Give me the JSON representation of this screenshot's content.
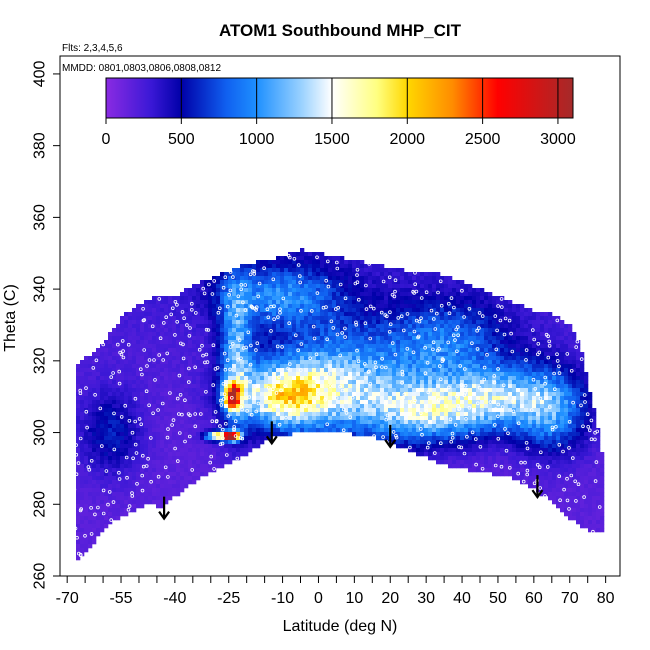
{
  "chart_data": {
    "type": "heatmap",
    "title": "ATOM1 Southbound MHP_CIT",
    "subtitle_lines": [
      "Flts: 2,3,4,5,6",
      "MMDD: 0801,0803,0806,0808,0812"
    ],
    "xlabel": "Latitude (deg N)",
    "ylabel": "Theta (C)",
    "xlim": [
      -72,
      84
    ],
    "ylim": [
      260,
      405
    ],
    "x_ticks": [
      -70,
      -55,
      -40,
      -25,
      -10,
      0,
      10,
      20,
      30,
      40,
      50,
      60,
      70,
      80
    ],
    "x_tick_labels": [
      "-70",
      "-55",
      "-40",
      "-25",
      "-10",
      "0",
      "10",
      "20",
      "30",
      "40",
      "50",
      "60",
      "70",
      "80"
    ],
    "x_minor_step": 5,
    "y_ticks": [
      260,
      280,
      300,
      320,
      340,
      360,
      380,
      400
    ],
    "y_tick_labels": [
      "260",
      "280",
      "300",
      "320",
      "340",
      "360",
      "380",
      "400"
    ],
    "colorbar": {
      "range": [
        0,
        3100
      ],
      "ticks": [
        0,
        500,
        1000,
        1500,
        2000,
        2500,
        3000
      ],
      "tick_labels": [
        "0",
        "500",
        "1000",
        "1500",
        "2000",
        "2500",
        "3000"
      ],
      "stops": [
        {
          "v": 0,
          "c": "#8a2be2"
        },
        {
          "v": 300,
          "c": "#3a18d6"
        },
        {
          "v": 500,
          "c": "#0000a8"
        },
        {
          "v": 800,
          "c": "#1060f0"
        },
        {
          "v": 1000,
          "c": "#1e90ff"
        },
        {
          "v": 1300,
          "c": "#9bd2ff"
        },
        {
          "v": 1500,
          "c": "#ffffff"
        },
        {
          "v": 1800,
          "c": "#ffff80"
        },
        {
          "v": 2000,
          "c": "#ffd700"
        },
        {
          "v": 2300,
          "c": "#ff8c00"
        },
        {
          "v": 2600,
          "c": "#ff0000"
        },
        {
          "v": 3100,
          "c": "#a52a2a"
        }
      ]
    },
    "upper_boundary": [
      {
        "lat": -68,
        "theta": 318
      },
      {
        "lat": -60,
        "theta": 325
      },
      {
        "lat": -55,
        "theta": 332
      },
      {
        "lat": -50,
        "theta": 336
      },
      {
        "lat": -45,
        "theta": 338
      },
      {
        "lat": -40,
        "theta": 338
      },
      {
        "lat": -35,
        "theta": 341
      },
      {
        "lat": -30,
        "theta": 343
      },
      {
        "lat": -25,
        "theta": 345
      },
      {
        "lat": -20,
        "theta": 347
      },
      {
        "lat": -15,
        "theta": 348
      },
      {
        "lat": -10,
        "theta": 349
      },
      {
        "lat": -5,
        "theta": 351
      },
      {
        "lat": 0,
        "theta": 350
      },
      {
        "lat": 5,
        "theta": 349
      },
      {
        "lat": 10,
        "theta": 348
      },
      {
        "lat": 15,
        "theta": 347
      },
      {
        "lat": 20,
        "theta": 346
      },
      {
        "lat": 25,
        "theta": 345
      },
      {
        "lat": 30,
        "theta": 345
      },
      {
        "lat": 35,
        "theta": 344
      },
      {
        "lat": 40,
        "theta": 342
      },
      {
        "lat": 45,
        "theta": 340
      },
      {
        "lat": 50,
        "theta": 338
      },
      {
        "lat": 55,
        "theta": 336
      },
      {
        "lat": 60,
        "theta": 334
      },
      {
        "lat": 65,
        "theta": 333
      },
      {
        "lat": 70,
        "theta": 330
      },
      {
        "lat": 73,
        "theta": 324
      },
      {
        "lat": 76,
        "theta": 310
      },
      {
        "lat": 78,
        "theta": 301
      },
      {
        "lat": 79,
        "theta": 295
      }
    ],
    "lower_boundary": [
      {
        "lat": 79,
        "theta": 272
      },
      {
        "lat": 76,
        "theta": 272
      },
      {
        "lat": 70,
        "theta": 276
      },
      {
        "lat": 62,
        "theta": 283
      },
      {
        "lat": 55,
        "theta": 287
      },
      {
        "lat": 45,
        "theta": 289
      },
      {
        "lat": 35,
        "theta": 291
      },
      {
        "lat": 25,
        "theta": 295
      },
      {
        "lat": 15,
        "theta": 299
      },
      {
        "lat": 5,
        "theta": 300
      },
      {
        "lat": -5,
        "theta": 300
      },
      {
        "lat": -12,
        "theta": 299
      },
      {
        "lat": -20,
        "theta": 294
      },
      {
        "lat": -25,
        "theta": 291
      },
      {
        "lat": -30,
        "theta": 289
      },
      {
        "lat": -35,
        "theta": 286
      },
      {
        "lat": -40,
        "theta": 282
      },
      {
        "lat": -43,
        "theta": 279
      },
      {
        "lat": -47,
        "theta": 280
      },
      {
        "lat": -52,
        "theta": 278
      },
      {
        "lat": -58,
        "theta": 275
      },
      {
        "lat": -62,
        "theta": 270
      },
      {
        "lat": -66,
        "theta": 265
      },
      {
        "lat": -68,
        "theta": 264
      }
    ],
    "field_features": [
      {
        "lat": -10,
        "theta": 310,
        "value": 1250,
        "sigma_lat": 9,
        "sigma_theta": 6
      },
      {
        "lat": 5,
        "theta": 314,
        "value": 1000,
        "sigma_lat": 14,
        "sigma_theta": 10
      },
      {
        "lat": 30,
        "theta": 306,
        "value": 1100,
        "sigma_lat": 12,
        "sigma_theta": 6
      },
      {
        "lat": 50,
        "theta": 310,
        "value": 950,
        "sigma_lat": 10,
        "sigma_theta": 6
      },
      {
        "lat": 65,
        "theta": 306,
        "value": 800,
        "sigma_lat": 7,
        "sigma_theta": 8
      },
      {
        "lat": -23,
        "theta": 322,
        "value": 850,
        "sigma_lat": 3,
        "sigma_theta": 14
      },
      {
        "lat": -24,
        "theta": 310,
        "value": 2100,
        "sigma_lat": 1.6,
        "sigma_theta": 2.5
      },
      {
        "lat": -24,
        "theta": 299,
        "value": 2900,
        "sigma_lat": 1.5,
        "sigma_theta": 0.9
      },
      {
        "lat": -28,
        "theta": 299,
        "value": 1600,
        "sigma_lat": 2.5,
        "sigma_theta": 0.9
      },
      {
        "lat": -58,
        "theta": 300,
        "value": 400,
        "sigma_lat": 6,
        "sigma_theta": 8
      },
      {
        "lat": -10,
        "theta": 338,
        "value": 700,
        "sigma_lat": 12,
        "sigma_theta": 6
      },
      {
        "lat": 35,
        "theta": 325,
        "value": 650,
        "sigma_lat": 12,
        "sigma_theta": 8
      }
    ],
    "arrows": [
      {
        "lat": -43,
        "theta_tip": 276
      },
      {
        "lat": -13,
        "theta_tip": 297
      },
      {
        "lat": 20,
        "theta_tip": 296
      },
      {
        "lat": 61,
        "theta_tip": 282
      }
    ],
    "observation_marker_count": 600
  }
}
